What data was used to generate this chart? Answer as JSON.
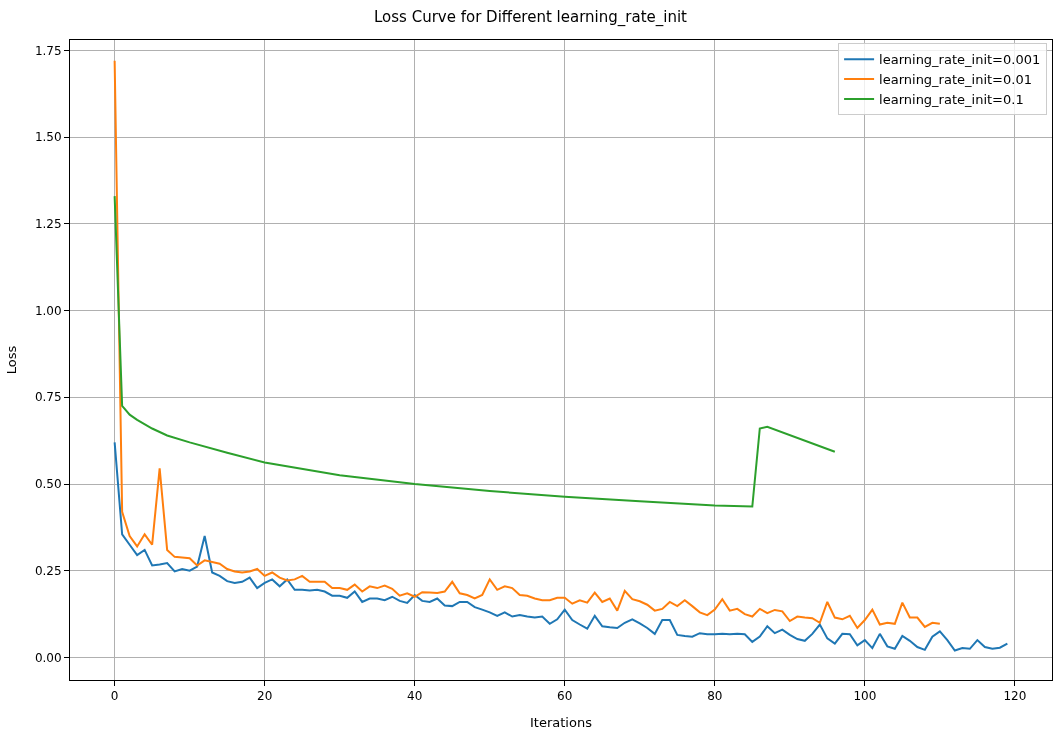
{
  "chart_data": {
    "type": "line",
    "title": "Loss Curve for Different learning_rate_init",
    "xlabel": "Iterations",
    "ylabel": "Loss",
    "xlim": [
      -5.95,
      124.95
    ],
    "xticks": [
      0,
      20,
      40,
      60,
      80,
      100,
      120
    ],
    "ylim": [
      -0.065,
      1.78
    ],
    "yticks": [
      {
        "value": 0,
        "label": "0.00"
      },
      {
        "value": 0.25,
        "label": "0.25"
      },
      {
        "value": 0.5,
        "label": "0.50"
      },
      {
        "value": 0.75,
        "label": "0.75"
      },
      {
        "value": 1,
        "label": "1.00"
      },
      {
        "value": 1.25,
        "label": "1.25"
      },
      {
        "value": 1.5,
        "label": "1.50"
      },
      {
        "value": 1.75,
        "label": "1.75"
      }
    ],
    "grid": true,
    "legend": "top right",
    "line_style": "solid",
    "marker": "none",
    "series": [
      {
        "name": "learning_rate_init=0.001",
        "color": "#1f77b4",
        "x": [
          0,
          1,
          2,
          3,
          4,
          5,
          6,
          7,
          8,
          9,
          10,
          11,
          12,
          13,
          14,
          15,
          16,
          17,
          18,
          19,
          20,
          21,
          22,
          23,
          24,
          25,
          26,
          27,
          28,
          29,
          30,
          31,
          32,
          33,
          34,
          35,
          36,
          37,
          38,
          39,
          40,
          41,
          42,
          43,
          44,
          45,
          46,
          47,
          48,
          49,
          50,
          51,
          52,
          53,
          54,
          55,
          56,
          57,
          58,
          59,
          60,
          61,
          62,
          63,
          64,
          65,
          66,
          67,
          68,
          69,
          70,
          71,
          72,
          73,
          74,
          75,
          76,
          77,
          78,
          79,
          80,
          81,
          82,
          83,
          84,
          85,
          86,
          87,
          88,
          89,
          90,
          91,
          92,
          93,
          94,
          95,
          96,
          97,
          98,
          99,
          100,
          101,
          102,
          103,
          104,
          105,
          106,
          107,
          108,
          109,
          110,
          111,
          112,
          113,
          114,
          115,
          116,
          117,
          118,
          119
        ],
        "values": [
          0.62,
          0.355,
          0.325,
          0.295,
          0.31,
          0.265,
          0.268,
          0.272,
          0.248,
          0.255,
          0.25,
          0.262,
          0.35,
          0.245,
          0.235,
          0.22,
          0.215,
          0.218,
          0.23,
          0.2,
          0.215,
          0.225,
          0.205,
          0.225,
          0.195,
          0.195,
          0.193,
          0.195,
          0.19,
          0.178,
          0.178,
          0.172,
          0.19,
          0.16,
          0.17,
          0.17,
          0.165,
          0.175,
          0.163,
          0.157,
          0.18,
          0.163,
          0.16,
          0.17,
          0.15,
          0.148,
          0.16,
          0.16,
          0.145,
          0.138,
          0.13,
          0.12,
          0.13,
          0.118,
          0.122,
          0.118,
          0.115,
          0.118,
          0.097,
          0.11,
          0.138,
          0.108,
          0.095,
          0.083,
          0.12,
          0.09,
          0.087,
          0.085,
          0.1,
          0.11,
          0.098,
          0.085,
          0.068,
          0.108,
          0.108,
          0.065,
          0.062,
          0.06,
          0.07,
          0.067,
          0.067,
          0.068,
          0.067,
          0.068,
          0.067,
          0.045,
          0.06,
          0.09,
          0.07,
          0.08,
          0.065,
          0.053,
          0.048,
          0.068,
          0.095,
          0.055,
          0.04,
          0.068,
          0.067,
          0.035,
          0.05,
          0.027,
          0.068,
          0.032,
          0.025,
          0.062,
          0.048,
          0.03,
          0.022,
          0.06,
          0.075,
          0.05,
          0.02,
          0.027,
          0.025,
          0.05,
          0.03,
          0.025,
          0.028,
          0.04
        ]
      },
      {
        "name": "learning_rate_init=0.01",
        "color": "#ff7f0e",
        "x": [
          0,
          1,
          2,
          3,
          4,
          5,
          6,
          7,
          8,
          9,
          10,
          11,
          12,
          13,
          14,
          15,
          16,
          17,
          18,
          19,
          20,
          21,
          22,
          23,
          24,
          25,
          26,
          27,
          28,
          29,
          30,
          31,
          32,
          33,
          34,
          35,
          36,
          37,
          38,
          39,
          40,
          41,
          42,
          43,
          44,
          45,
          46,
          47,
          48,
          49,
          50,
          51,
          52,
          53,
          54,
          55,
          56,
          57,
          58,
          59,
          60,
          61,
          62,
          63,
          64,
          65,
          66,
          67,
          68,
          69,
          70,
          71,
          72,
          73,
          74,
          75,
          76,
          77,
          78,
          79,
          80,
          81,
          82,
          83,
          84,
          85,
          86,
          87,
          88,
          89,
          90,
          91,
          92,
          93,
          94,
          95,
          96,
          97,
          98,
          99,
          100,
          101,
          102,
          103,
          104,
          105,
          106,
          107,
          108,
          109,
          110
        ],
        "values": [
          1.72,
          0.42,
          0.35,
          0.32,
          0.355,
          0.325,
          0.545,
          0.31,
          0.29,
          0.288,
          0.286,
          0.265,
          0.28,
          0.275,
          0.27,
          0.255,
          0.248,
          0.245,
          0.248,
          0.255,
          0.235,
          0.245,
          0.23,
          0.222,
          0.225,
          0.235,
          0.218,
          0.218,
          0.218,
          0.2,
          0.2,
          0.195,
          0.21,
          0.19,
          0.205,
          0.2,
          0.207,
          0.198,
          0.178,
          0.185,
          0.175,
          0.188,
          0.187,
          0.186,
          0.19,
          0.218,
          0.185,
          0.18,
          0.17,
          0.18,
          0.225,
          0.195,
          0.205,
          0.2,
          0.18,
          0.178,
          0.17,
          0.165,
          0.165,
          0.172,
          0.172,
          0.155,
          0.165,
          0.158,
          0.187,
          0.16,
          0.17,
          0.135,
          0.192,
          0.168,
          0.162,
          0.152,
          0.135,
          0.14,
          0.16,
          0.148,
          0.165,
          0.148,
          0.13,
          0.122,
          0.138,
          0.168,
          0.135,
          0.14,
          0.125,
          0.118,
          0.14,
          0.128,
          0.137,
          0.133,
          0.105,
          0.118,
          0.115,
          0.113,
          0.1,
          0.16,
          0.115,
          0.11,
          0.12,
          0.085,
          0.108,
          0.138,
          0.095,
          0.1,
          0.097,
          0.158,
          0.115,
          0.115,
          0.088,
          0.1,
          0.097
        ]
      },
      {
        "name": "learning_rate_init=0.1",
        "color": "#2ca02c",
        "x": [
          0,
          1,
          2,
          3,
          5,
          7,
          10,
          15,
          20,
          30,
          40,
          50,
          60,
          70,
          80,
          85,
          86,
          87,
          96
        ],
        "values": [
          1.33,
          0.725,
          0.7,
          0.685,
          0.66,
          0.64,
          0.62,
          0.59,
          0.562,
          0.525,
          0.5,
          0.48,
          0.463,
          0.45,
          0.438,
          0.435,
          0.66,
          0.665,
          0.593
        ]
      }
    ]
  }
}
